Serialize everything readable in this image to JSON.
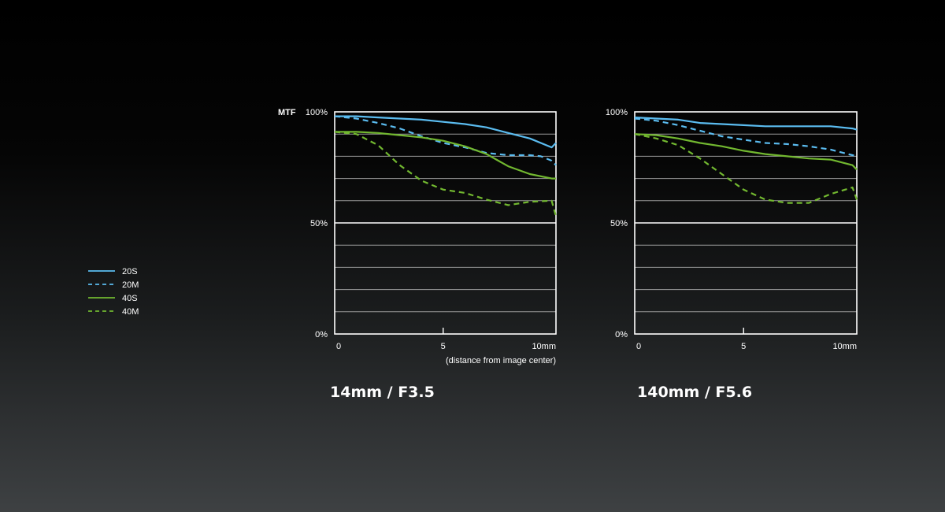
{
  "ylabel": "MTF",
  "xnote": "(distance from image center)",
  "colors": {
    "blue": "#5bbcf0",
    "green": "#72b830",
    "grid": "#9a9a9a",
    "frame": "#ffffff"
  },
  "legend": [
    {
      "label": "20S",
      "color": "#5bbcf0",
      "dash": false
    },
    {
      "label": "20M",
      "color": "#5bbcf0",
      "dash": true
    },
    {
      "label": "40S",
      "color": "#72b830",
      "dash": false
    },
    {
      "label": "40M",
      "color": "#72b830",
      "dash": true
    }
  ],
  "chart_data": [
    {
      "type": "line",
      "title": "14mm / F3.5",
      "xlabel": "(distance from image center)",
      "ylabel": "MTF",
      "xlim": [
        0,
        10.2
      ],
      "ylim": [
        0,
        100
      ],
      "yticks": [
        0,
        50,
        100
      ],
      "ytick_labels": [
        "0%",
        "50%",
        "100%"
      ],
      "xticks": [
        0,
        5,
        10
      ],
      "xtick_labels": [
        "0",
        "5",
        "10mm"
      ],
      "grid": "horizontal every 10%",
      "series": [
        {
          "name": "20S",
          "color": "#5bbcf0",
          "dash": false,
          "x": [
            0,
            1,
            2,
            3,
            4,
            5,
            6,
            7,
            8,
            9,
            10,
            10.2
          ],
          "y": [
            98,
            98,
            97.5,
            97,
            96.5,
            95.5,
            94.5,
            93,
            90.5,
            88,
            84,
            86
          ]
        },
        {
          "name": "20M",
          "color": "#5bbcf0",
          "dash": true,
          "x": [
            0,
            1,
            2,
            3,
            4,
            5,
            6,
            7,
            8,
            9,
            9.5,
            10,
            10.2
          ],
          "y": [
            98,
            97,
            95,
            92.5,
            89,
            86,
            84,
            81.5,
            80.5,
            80.5,
            80,
            78,
            76
          ]
        },
        {
          "name": "40S",
          "color": "#72b830",
          "dash": false,
          "x": [
            0,
            1,
            2,
            3,
            4,
            5,
            6,
            7,
            8,
            9,
            10,
            10.2
          ],
          "y": [
            91,
            91,
            90.5,
            89.5,
            88.5,
            87,
            84.5,
            81,
            75.5,
            72,
            70,
            70
          ]
        },
        {
          "name": "40M",
          "color": "#72b830",
          "dash": true,
          "x": [
            0,
            1,
            2,
            3,
            4,
            5,
            6,
            7,
            8,
            9,
            10,
            10.2
          ],
          "y": [
            91,
            90,
            85,
            76,
            69,
            65,
            63.5,
            60.5,
            58,
            59.5,
            60,
            53
          ]
        }
      ]
    },
    {
      "type": "line",
      "title": "140mm / F5.6",
      "xlabel": "",
      "ylabel": "",
      "xlim": [
        0,
        10.2
      ],
      "ylim": [
        0,
        100
      ],
      "yticks": [
        0,
        50,
        100
      ],
      "ytick_labels": [
        "0%",
        "50%",
        "100%"
      ],
      "xticks": [
        0,
        5,
        10
      ],
      "xtick_labels": [
        "0",
        "5",
        "10mm"
      ],
      "grid": "horizontal every 10%",
      "series": [
        {
          "name": "20S",
          "color": "#5bbcf0",
          "dash": false,
          "x": [
            0,
            1,
            2,
            3,
            4,
            5,
            6,
            7,
            8,
            9,
            10,
            10.2
          ],
          "y": [
            97.5,
            97,
            96.5,
            95,
            94.5,
            94,
            93.5,
            93.5,
            93.5,
            93.5,
            92.5,
            92
          ]
        },
        {
          "name": "20M",
          "color": "#5bbcf0",
          "dash": true,
          "x": [
            0,
            1,
            2,
            3,
            4,
            5,
            6,
            7,
            8,
            9,
            10,
            10.2
          ],
          "y": [
            97,
            96,
            94,
            91.5,
            89,
            87.5,
            86,
            85.5,
            84.5,
            83,
            80.5,
            80
          ]
        },
        {
          "name": "40S",
          "color": "#72b830",
          "dash": false,
          "x": [
            0,
            1,
            2,
            3,
            4,
            5,
            6,
            7,
            8,
            9,
            10,
            10.2
          ],
          "y": [
            90,
            89.5,
            88,
            86,
            84.5,
            82.5,
            81,
            80,
            79,
            78.5,
            76,
            74
          ]
        },
        {
          "name": "40M",
          "color": "#72b830",
          "dash": true,
          "x": [
            0,
            1,
            2,
            3,
            4,
            5,
            6,
            7,
            8,
            9,
            10,
            10.2
          ],
          "y": [
            90,
            88,
            85,
            79,
            72,
            65,
            60.5,
            59,
            59,
            63,
            66,
            60.5
          ]
        }
      ]
    }
  ]
}
